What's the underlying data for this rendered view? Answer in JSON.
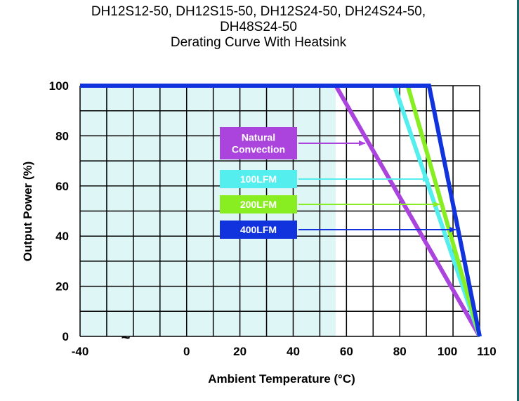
{
  "chart_data": {
    "type": "line",
    "title_lines": [
      "DH12S12-50, DH12S15-50, DH12S24-50, DH24S24-50,",
      "DH48S24-50",
      "Derating Curve With Heatsink"
    ],
    "xlabel": "Ambient Temperature (°C)",
    "ylabel": "Output Power (%)",
    "xlim": [
      -40,
      110
    ],
    "ylim": [
      0,
      100
    ],
    "x_ticks": [
      -40,
      0,
      20,
      40,
      60,
      80,
      100,
      110
    ],
    "y_ticks": [
      0,
      20,
      40,
      60,
      80,
      100
    ],
    "axis_break_symbol": "~",
    "grid": true,
    "shaded_region_x": [
      -40,
      56
    ],
    "colors": {
      "shaded_region": "#dff6f6",
      "grid": "#000000"
    },
    "series": [
      {
        "name": "Natural Convection",
        "label_lines": [
          "Natural",
          "Convection"
        ],
        "color": "#aa44dd",
        "x": [
          -40,
          56,
          110
        ],
        "y": [
          100,
          100,
          0
        ],
        "arrow_to": [
          67,
          84
        ]
      },
      {
        "name": "100LFM",
        "label_lines": [
          "100LFM"
        ],
        "color": "#55eeee",
        "x": [
          -40,
          78,
          110
        ],
        "y": [
          100,
          100,
          0
        ],
        "arrow_to": [
          91,
          60
        ]
      },
      {
        "name": "200LFM",
        "label_lines": [
          "200LFM"
        ],
        "color": "#88ee22",
        "x": [
          -40,
          83,
          110
        ],
        "y": [
          100,
          100,
          0
        ],
        "arrow_to": [
          95,
          52
        ]
      },
      {
        "name": "400LFM",
        "label_lines": [
          "400LFM"
        ],
        "color": "#1133dd",
        "x": [
          -40,
          91,
          110
        ],
        "y": [
          100,
          100,
          0
        ],
        "arrow_to": [
          101,
          43
        ]
      }
    ]
  }
}
